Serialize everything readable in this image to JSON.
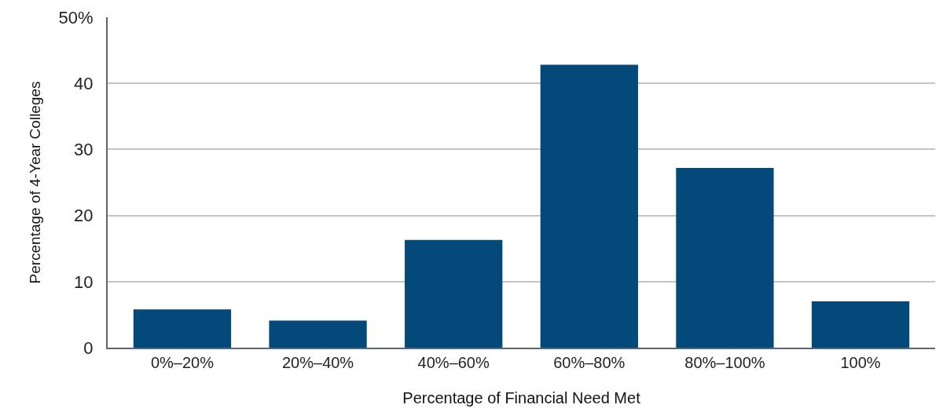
{
  "chart_data": {
    "type": "bar",
    "xlabel": "Percentage of Financial Need Met",
    "ylabel": "Percentage of 4-Year Colleges",
    "categories": [
      "0%–20%",
      "20%–40%",
      "40%–60%",
      "60%–80%",
      "80%–100%",
      "100%"
    ],
    "values": [
      5.8,
      4.1,
      16.3,
      42.8,
      27.2,
      7.0
    ],
    "color": "#034a7a",
    "ylim": [
      0,
      50
    ],
    "yticks": [
      0,
      10,
      20,
      30,
      40,
      {
        "value": 50,
        "label": "50%"
      }
    ],
    "grid": "y",
    "legend": false
  }
}
